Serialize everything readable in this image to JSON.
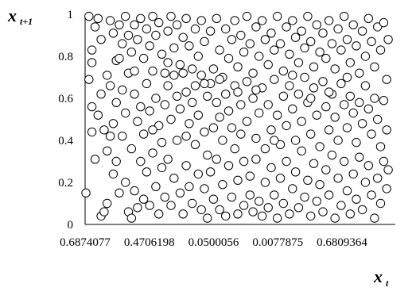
{
  "chart_data": {
    "type": "scatter",
    "title": "",
    "xlabel": "x",
    "xlabel_subscript": "t",
    "ylabel": "x",
    "ylabel_subscript": "t+1",
    "ylim": [
      0,
      1
    ],
    "x_tick_labels": [
      "0.6874077",
      "0.4706198",
      "0.0500056",
      "0.0077875",
      "0.6809364"
    ],
    "y_tick_labels": [
      "0",
      "0.2",
      "0.4",
      "0.6",
      "0.8",
      "1"
    ],
    "grid": false,
    "legend": "none",
    "marker": "open-circle",
    "series": [
      {
        "values": [
          [
            0.0,
            0.15
          ],
          [
            0.01,
            0.99
          ],
          [
            0.01,
            0.69
          ],
          [
            0.02,
            0.77
          ],
          [
            0.02,
            0.56
          ],
          [
            0.02,
            0.44
          ],
          [
            0.03,
            0.94
          ],
          [
            0.03,
            0.31
          ],
          [
            0.04,
            0.98
          ],
          [
            0.04,
            0.52
          ],
          [
            0.05,
            0.04
          ],
          [
            0.05,
            0.88
          ],
          [
            0.06,
            0.45
          ],
          [
            0.06,
            0.06
          ],
          [
            0.07,
            0.1
          ],
          [
            0.07,
            0.71
          ],
          [
            0.07,
            0.35
          ],
          [
            0.08,
            0.97
          ],
          [
            0.08,
            0.66
          ],
          [
            0.08,
            0.42
          ],
          [
            0.09,
            0.91
          ],
          [
            0.09,
            0.48
          ],
          [
            0.09,
            0.24
          ],
          [
            0.1,
            0.78
          ],
          [
            0.1,
            0.58
          ],
          [
            0.1,
            0.3
          ],
          [
            0.11,
            0.95
          ],
          [
            0.11,
            0.15
          ],
          [
            0.12,
            0.86
          ],
          [
            0.12,
            0.64
          ],
          [
            0.12,
            0.42
          ],
          [
            0.13,
            0.99
          ],
          [
            0.13,
            0.53
          ],
          [
            0.13,
            0.2
          ],
          [
            0.14,
            0.9
          ],
          [
            0.14,
            0.06
          ],
          [
            0.14,
            0.72
          ],
          [
            0.15,
            0.82
          ],
          [
            0.15,
            0.36
          ],
          [
            0.15,
            0.03
          ],
          [
            0.16,
            0.95
          ],
          [
            0.16,
            0.62
          ],
          [
            0.16,
            0.16
          ],
          [
            0.17,
            0.88
          ],
          [
            0.17,
            0.49
          ],
          [
            0.17,
            0.08
          ],
          [
            0.18,
            0.98
          ],
          [
            0.18,
            0.56
          ],
          [
            0.18,
            0.3
          ],
          [
            0.19,
            0.79
          ],
          [
            0.19,
            0.43
          ],
          [
            0.19,
            0.12
          ],
          [
            0.2,
            0.93
          ],
          [
            0.2,
            0.67
          ],
          [
            0.2,
            0.25
          ],
          [
            0.21,
            0.85
          ],
          [
            0.21,
            0.09
          ],
          [
            0.21,
            0.54
          ],
          [
            0.22,
            0.99
          ],
          [
            0.22,
            0.73
          ],
          [
            0.22,
            0.34
          ],
          [
            0.23,
            0.9
          ],
          [
            0.23,
            0.6
          ],
          [
            0.23,
            0.18
          ],
          [
            0.24,
            0.96
          ],
          [
            0.24,
            0.47
          ],
          [
            0.24,
            0.05
          ],
          [
            0.25,
            0.81
          ],
          [
            0.25,
            0.39
          ],
          [
            0.25,
            0.27
          ],
          [
            0.26,
            0.72
          ],
          [
            0.26,
            0.57
          ],
          [
            0.26,
            0.13
          ],
          [
            0.27,
            0.92
          ],
          [
            0.27,
            0.66
          ],
          [
            0.27,
            0.31
          ],
          [
            0.28,
            0.99
          ],
          [
            0.28,
            0.5
          ],
          [
            0.28,
            0.09
          ],
          [
            0.29,
            0.84
          ],
          [
            0.29,
            0.71
          ],
          [
            0.29,
            0.22
          ],
          [
            0.3,
            0.95
          ],
          [
            0.3,
            0.61
          ],
          [
            0.3,
            0.4
          ],
          [
            0.31,
            0.76
          ],
          [
            0.31,
            0.55
          ],
          [
            0.31,
            0.15
          ],
          [
            0.32,
            0.89
          ],
          [
            0.32,
            0.72
          ],
          [
            0.32,
            0.05
          ],
          [
            0.33,
            0.98
          ],
          [
            0.33,
            0.63
          ],
          [
            0.33,
            0.28
          ],
          [
            0.34,
            0.85
          ],
          [
            0.34,
            0.48
          ],
          [
            0.34,
            0.18
          ],
          [
            0.35,
            0.74
          ],
          [
            0.35,
            0.58
          ],
          [
            0.35,
            0.1
          ],
          [
            0.36,
            0.93
          ],
          [
            0.36,
            0.66
          ],
          [
            0.36,
            0.38
          ],
          [
            0.37,
            0.8
          ],
          [
            0.37,
            0.52
          ],
          [
            0.37,
            0.24
          ],
          [
            0.38,
            0.97
          ],
          [
            0.38,
            0.71
          ],
          [
            0.38,
            0.07
          ],
          [
            0.39,
            0.87
          ],
          [
            0.39,
            0.44
          ],
          [
            0.39,
            0.17
          ],
          [
            0.4,
            0.61
          ],
          [
            0.4,
            0.33
          ],
          [
            0.4,
            0.03
          ],
          [
            0.41,
            0.92
          ],
          [
            0.41,
            0.67
          ],
          [
            0.41,
            0.25
          ],
          [
            0.42,
            0.74
          ],
          [
            0.42,
            0.46
          ],
          [
            0.42,
            0.12
          ],
          [
            0.43,
            0.98
          ],
          [
            0.43,
            0.58
          ],
          [
            0.43,
            0.31
          ],
          [
            0.44,
            0.83
          ],
          [
            0.44,
            0.51
          ],
          [
            0.44,
            0.07
          ],
          [
            0.45,
            0.7
          ],
          [
            0.45,
            0.4
          ],
          [
            0.45,
            0.19
          ],
          [
            0.46,
            0.93
          ],
          [
            0.46,
            0.62
          ],
          [
            0.46,
            0.04
          ],
          [
            0.47,
            0.79
          ],
          [
            0.47,
            0.54
          ],
          [
            0.47,
            0.28
          ],
          [
            0.48,
            0.88
          ],
          [
            0.48,
            0.46
          ],
          [
            0.48,
            0.13
          ],
          [
            0.49,
            0.97
          ],
          [
            0.49,
            0.66
          ],
          [
            0.49,
            0.36
          ],
          [
            0.5,
            0.75
          ],
          [
            0.5,
            0.21
          ],
          [
            0.5,
            0.05
          ],
          [
            0.51,
            0.9
          ],
          [
            0.51,
            0.57
          ],
          [
            0.51,
            0.43
          ],
          [
            0.52,
            0.82
          ],
          [
            0.52,
            0.3
          ],
          [
            0.52,
            0.09
          ],
          [
            0.53,
            0.99
          ],
          [
            0.53,
            0.68
          ],
          [
            0.53,
            0.49
          ],
          [
            0.54,
            0.86
          ],
          [
            0.54,
            0.23
          ],
          [
            0.54,
            0.14
          ],
          [
            0.55,
            0.72
          ],
          [
            0.55,
            0.6
          ],
          [
            0.55,
            0.06
          ],
          [
            0.56,
            0.94
          ],
          [
            0.56,
            0.41
          ],
          [
            0.56,
            0.31
          ],
          [
            0.57,
            0.8
          ],
          [
            0.57,
            0.53
          ],
          [
            0.57,
            0.11
          ],
          [
            0.58,
            0.97
          ],
          [
            0.58,
            0.65
          ],
          [
            0.58,
            0.04
          ],
          [
            0.59,
            0.88
          ],
          [
            0.59,
            0.36
          ],
          [
            0.59,
            0.2
          ],
          [
            0.6,
            0.76
          ],
          [
            0.6,
            0.57
          ],
          [
            0.6,
            0.08
          ],
          [
            0.61,
            0.91
          ],
          [
            0.61,
            0.45
          ],
          [
            0.61,
            0.27
          ],
          [
            0.62,
            0.83
          ],
          [
            0.62,
            0.69
          ],
          [
            0.62,
            0.14
          ],
          [
            0.63,
            0.99
          ],
          [
            0.63,
            0.52
          ],
          [
            0.63,
            0.03
          ],
          [
            0.64,
            0.86
          ],
          [
            0.64,
            0.38
          ],
          [
            0.64,
            0.22
          ],
          [
            0.65,
            0.73
          ],
          [
            0.65,
            0.61
          ],
          [
            0.65,
            0.1
          ],
          [
            0.66,
            0.94
          ],
          [
            0.66,
            0.47
          ],
          [
            0.66,
            0.3
          ],
          [
            0.67,
            0.81
          ],
          [
            0.67,
            0.66
          ],
          [
            0.67,
            0.05
          ],
          [
            0.68,
            0.97
          ],
          [
            0.68,
            0.55
          ],
          [
            0.68,
            0.17
          ],
          [
            0.69,
            0.89
          ],
          [
            0.69,
            0.4
          ],
          [
            0.69,
            0.25
          ],
          [
            0.7,
            0.77
          ],
          [
            0.7,
            0.62
          ],
          [
            0.7,
            0.08
          ],
          [
            0.71,
            0.92
          ],
          [
            0.71,
            0.49
          ],
          [
            0.71,
            0.35
          ],
          [
            0.72,
            0.84
          ],
          [
            0.72,
            0.7
          ],
          [
            0.72,
            0.13
          ],
          [
            0.73,
            0.99
          ],
          [
            0.73,
            0.58
          ],
          [
            0.73,
            0.21
          ],
          [
            0.74,
            0.87
          ],
          [
            0.74,
            0.43
          ],
          [
            0.74,
            0.04
          ],
          [
            0.75,
            0.75
          ],
          [
            0.75,
            0.65
          ],
          [
            0.75,
            0.29
          ],
          [
            0.76,
            0.95
          ],
          [
            0.76,
            0.52
          ],
          [
            0.76,
            0.11
          ],
          [
            0.77,
            0.82
          ],
          [
            0.77,
            0.37
          ],
          [
            0.77,
            0.19
          ],
          [
            0.78,
            0.91
          ],
          [
            0.78,
            0.68
          ],
          [
            0.78,
            0.06
          ],
          [
            0.79,
            0.79
          ],
          [
            0.79,
            0.56
          ],
          [
            0.79,
            0.26
          ],
          [
            0.8,
            0.97
          ],
          [
            0.8,
            0.45
          ],
          [
            0.8,
            0.14
          ],
          [
            0.81,
            0.86
          ],
          [
            0.81,
            0.62
          ],
          [
            0.81,
            0.33
          ],
          [
            0.82,
            0.74
          ],
          [
            0.82,
            0.51
          ],
          [
            0.82,
            0.03
          ],
          [
            0.83,
            0.93
          ],
          [
            0.83,
            0.4
          ],
          [
            0.83,
            0.22
          ],
          [
            0.84,
            0.83
          ],
          [
            0.84,
            0.67
          ],
          [
            0.84,
            0.09
          ],
          [
            0.85,
            0.99
          ],
          [
            0.85,
            0.57
          ],
          [
            0.85,
            0.3
          ],
          [
            0.86,
            0.88
          ],
          [
            0.86,
            0.46
          ],
          [
            0.86,
            0.16
          ],
          [
            0.87,
            0.77
          ],
          [
            0.87,
            0.61
          ],
          [
            0.87,
            0.05
          ],
          [
            0.88,
            0.95
          ],
          [
            0.88,
            0.53
          ],
          [
            0.88,
            0.24
          ],
          [
            0.89,
            0.85
          ],
          [
            0.89,
            0.39
          ],
          [
            0.89,
            0.12
          ],
          [
            0.9,
            0.72
          ],
          [
            0.9,
            0.58
          ],
          [
            0.9,
            0.32
          ],
          [
            0.91,
            0.92
          ],
          [
            0.91,
            0.48
          ],
          [
            0.91,
            0.07
          ],
          [
            0.92,
            0.8
          ],
          [
            0.92,
            0.66
          ],
          [
            0.92,
            0.2
          ],
          [
            0.93,
            0.98
          ],
          [
            0.93,
            0.55
          ],
          [
            0.93,
            0.28
          ],
          [
            0.94,
            0.87
          ],
          [
            0.94,
            0.43
          ],
          [
            0.94,
            0.14
          ],
          [
            0.95,
            0.75
          ],
          [
            0.95,
            0.6
          ],
          [
            0.95,
            0.03
          ],
          [
            0.96,
            0.94
          ],
          [
            0.96,
            0.5
          ],
          [
            0.96,
            0.22
          ],
          [
            0.97,
            0.83
          ],
          [
            0.97,
            0.37
          ],
          [
            0.97,
            0.1
          ],
          [
            0.98,
            0.96
          ],
          [
            0.98,
            0.59
          ],
          [
            0.98,
            0.3
          ],
          [
            0.99,
            0.69
          ],
          [
            0.99,
            0.45
          ],
          [
            0.99,
            0.17
          ],
          [
            0.995,
            0.88
          ],
          [
            0.995,
            0.26
          ],
          [
            0.02,
            0.83
          ],
          [
            0.05,
            0.62
          ],
          [
            0.11,
            0.79
          ],
          [
            0.16,
            0.73
          ],
          [
            0.22,
            0.45
          ],
          [
            0.27,
            0.77
          ],
          [
            0.33,
            0.42
          ],
          [
            0.39,
            0.67
          ],
          [
            0.44,
            0.69
          ],
          [
            0.5,
            0.63
          ],
          [
            0.56,
            0.64
          ],
          [
            0.62,
            0.4
          ],
          [
            0.68,
            0.71
          ],
          [
            0.74,
            0.6
          ],
          [
            0.8,
            0.63
          ],
          [
            0.86,
            0.7
          ]
        ]
      }
    ]
  }
}
